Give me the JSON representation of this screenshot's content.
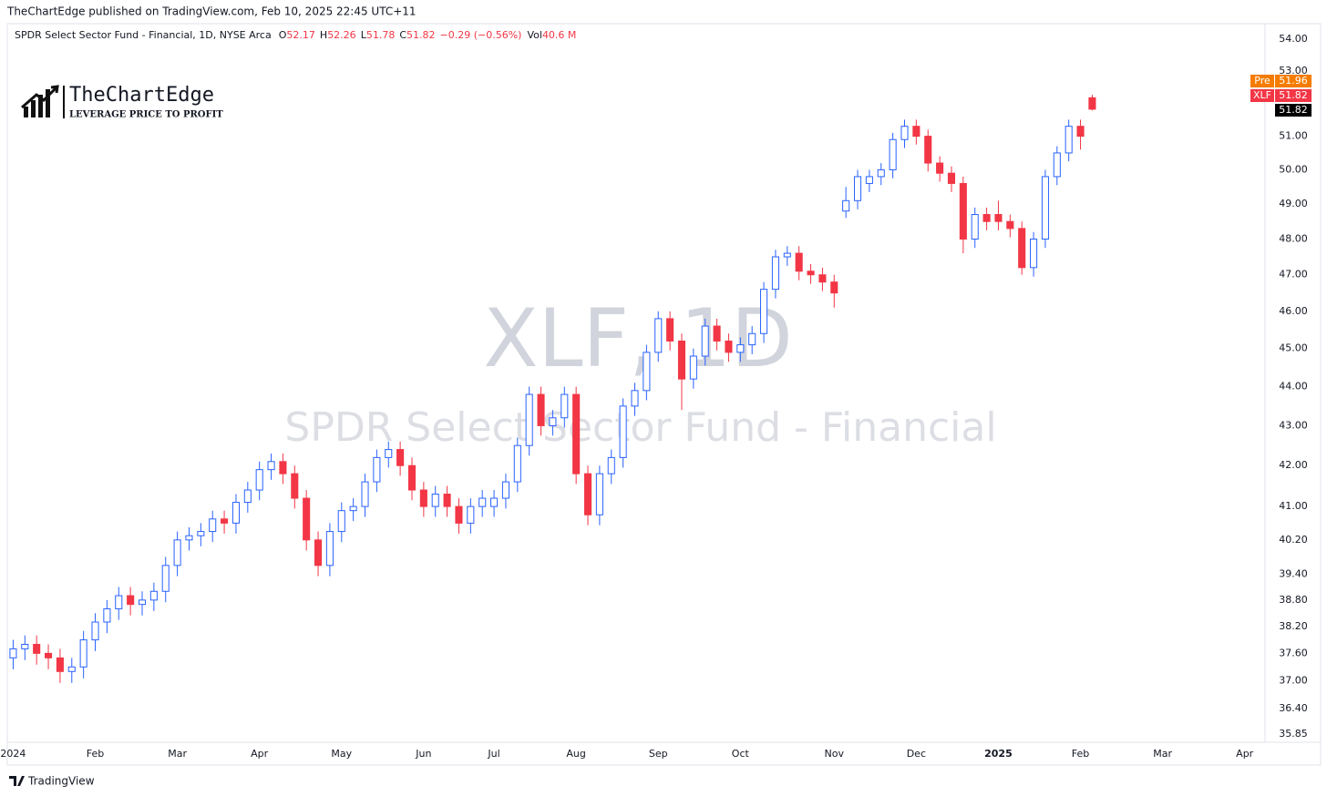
{
  "header": {
    "published": "TheChartEdge published on TradingView.com, Feb 10, 2025 22:45 UTC+11",
    "brand": "TradingView"
  },
  "logo": {
    "name": "TheChartEdge",
    "tagline": "LEVERAGE PRICE TO PROFIT"
  },
  "chart_data": {
    "type": "candlestick",
    "title": "SPDR Select Sector Fund - Financial, 1D, NYSE Arca",
    "ohlc_legend": [
      {
        "label": "O",
        "value": "52.17"
      },
      {
        "label": "H",
        "value": "52.26"
      },
      {
        "label": "L",
        "value": "51.78"
      },
      {
        "label": "C",
        "value": "51.82"
      }
    ],
    "change": "−0.29 (−0.56%)",
    "volume_label": "Vol",
    "volume": "40.6 M",
    "watermark_symbol": "XLF, 1D",
    "watermark_name": "SPDR Select Sector Fund - Financial",
    "price_labels": [
      {
        "name": "Pre",
        "value": "51.96",
        "color": "#f57c00"
      },
      {
        "name": "XLF",
        "value": "51.82",
        "color": "#f23645"
      },
      {
        "value": "51.82",
        "color": "#000000"
      }
    ],
    "up_color": "#2962ff",
    "down_color": "#f23645",
    "log_scale": true,
    "ylim": [
      35.68,
      54.44
    ],
    "yticks": [
      {
        "value": 35.85,
        "label": "35.85"
      },
      {
        "value": 36.4,
        "label": "36.40"
      },
      {
        "value": 37,
        "label": "37.00"
      },
      {
        "value": 37.6,
        "label": "37.60"
      },
      {
        "value": 38.2,
        "label": "38.20"
      },
      {
        "value": 38.8,
        "label": "38.80"
      },
      {
        "value": 39.4,
        "label": "39.40"
      },
      {
        "value": 40.2,
        "label": "40.20"
      },
      {
        "value": 41,
        "label": "41.00"
      },
      {
        "value": 42,
        "label": "42.00"
      },
      {
        "value": 43,
        "label": "43.00"
      },
      {
        "value": 44,
        "label": "44.00"
      },
      {
        "value": 45,
        "label": "45.00"
      },
      {
        "value": 46,
        "label": "46.00"
      },
      {
        "value": 47,
        "label": "47.00"
      },
      {
        "value": 48,
        "label": "48.00"
      },
      {
        "value": 49,
        "label": "49.00"
      },
      {
        "value": 50,
        "label": "50.00"
      },
      {
        "value": 51,
        "label": "51.00"
      },
      {
        "value": 53,
        "label": "53.00"
      },
      {
        "value": 54,
        "label": "54.00"
      }
    ],
    "categories": [
      "2024",
      null,
      null,
      null,
      null,
      null,
      null,
      "Feb",
      null,
      null,
      null,
      null,
      null,
      null,
      "Mar",
      null,
      null,
      null,
      null,
      null,
      null,
      "Apr",
      null,
      null,
      null,
      null,
      null,
      null,
      "May",
      null,
      null,
      null,
      null,
      null,
      null,
      "Jun",
      null,
      null,
      null,
      null,
      null,
      "Jul",
      null,
      null,
      null,
      null,
      null,
      null,
      "Aug",
      null,
      null,
      null,
      null,
      null,
      null,
      "Sep",
      null,
      null,
      null,
      null,
      null,
      null,
      "Oct",
      null,
      null,
      null,
      null,
      null,
      null,
      null,
      "Nov",
      null,
      null,
      null,
      null,
      null,
      null,
      "Dec",
      null,
      null,
      null,
      null,
      null,
      null,
      "2025",
      null,
      null,
      null,
      null,
      null,
      null,
      "Feb",
      null,
      null,
      null,
      null,
      null,
      null,
      "Mar",
      null,
      null,
      null,
      null,
      null,
      null,
      "Apr",
      null
    ],
    "open": [
      37.5,
      37.7,
      37.8,
      37.6,
      37.5,
      37.2,
      37.3,
      37.9,
      38.3,
      38.6,
      38.9,
      38.7,
      38.8,
      39.0,
      39.6,
      40.2,
      40.3,
      40.4,
      40.7,
      40.6,
      41.1,
      41.4,
      41.9,
      42.1,
      41.8,
      41.2,
      40.2,
      39.6,
      40.4,
      40.9,
      41.0,
      41.6,
      42.2,
      42.4,
      42.0,
      41.4,
      41.0,
      41.3,
      41.0,
      40.6,
      41.0,
      41.0,
      41.2,
      41.6,
      42.5,
      43.8,
      43.0,
      43.2,
      43.8,
      41.8,
      40.8,
      41.8,
      42.2,
      43.5,
      43.9,
      44.9,
      45.8,
      45.2,
      44.2,
      44.8,
      45.6,
      45.2,
      44.9,
      45.1,
      45.4,
      46.6,
      47.5,
      47.6,
      47.1,
      47.0,
      46.8,
      48.8,
      49.1,
      49.6,
      49.8,
      50.0,
      50.9,
      51.3,
      51.0,
      50.2,
      49.9,
      49.6,
      48.0,
      48.7,
      48.7,
      48.5,
      48.3,
      47.2,
      48.0,
      49.8,
      50.5,
      51.3,
      52.17,
      null,
      null,
      null,
      null,
      null,
      null,
      null,
      null,
      null,
      null,
      null,
      null,
      null,
      null
    ],
    "high": [
      37.9,
      38.0,
      38.0,
      37.8,
      37.7,
      37.5,
      38.1,
      38.5,
      38.8,
      39.1,
      39.1,
      39.0,
      39.2,
      39.8,
      40.4,
      40.5,
      40.6,
      40.9,
      40.9,
      41.3,
      41.6,
      42.1,
      42.3,
      42.3,
      42.0,
      41.4,
      40.4,
      40.6,
      41.1,
      41.2,
      41.8,
      42.4,
      42.6,
      42.6,
      42.2,
      41.6,
      41.5,
      41.5,
      41.2,
      41.2,
      41.4,
      41.4,
      41.8,
      42.7,
      44.0,
      44.0,
      43.4,
      44.0,
      44.0,
      42.0,
      42.0,
      42.4,
      43.7,
      44.1,
      45.1,
      46.0,
      46.0,
      45.4,
      45.0,
      45.8,
      45.8,
      45.4,
      45.3,
      45.6,
      46.8,
      47.7,
      47.8,
      47.8,
      47.3,
      47.2,
      47.0,
      49.5,
      50.0,
      50.0,
      50.2,
      51.1,
      51.5,
      51.5,
      51.2,
      50.4,
      50.1,
      49.8,
      48.9,
      48.9,
      49.1,
      48.7,
      48.5,
      48.2,
      50.0,
      50.7,
      51.5,
      51.5,
      52.26,
      null,
      null,
      null,
      null,
      null,
      null,
      null,
      null,
      null,
      null,
      null,
      null,
      null,
      null
    ],
    "low": [
      37.25,
      37.45,
      37.35,
      37.25,
      36.95,
      36.95,
      37.05,
      37.65,
      38.05,
      38.35,
      38.45,
      38.45,
      38.55,
      38.75,
      39.35,
      39.95,
      40.05,
      40.15,
      40.35,
      40.35,
      40.85,
      41.15,
      41.65,
      41.55,
      40.95,
      39.95,
      39.35,
      39.35,
      40.15,
      40.65,
      40.75,
      41.35,
      41.95,
      41.75,
      41.15,
      40.75,
      40.75,
      40.75,
      40.35,
      40.35,
      40.75,
      40.75,
      40.95,
      41.35,
      42.25,
      42.75,
      42.75,
      42.95,
      41.55,
      40.55,
      40.55,
      41.55,
      41.95,
      43.25,
      43.65,
      44.65,
      44.95,
      43.4,
      43.95,
      44.55,
      44.95,
      44.65,
      44.65,
      44.85,
      45.15,
      46.35,
      47.25,
      46.85,
      46.75,
      46.55,
      46.1,
      48.6,
      48.85,
      49.35,
      49.55,
      49.75,
      50.65,
      50.75,
      49.95,
      49.65,
      49.35,
      47.6,
      47.75,
      48.25,
      48.25,
      48.05,
      47.0,
      46.95,
      47.75,
      49.55,
      50.25,
      50.6,
      51.78,
      null,
      null,
      null,
      null,
      null,
      null,
      null,
      null,
      null,
      null,
      null,
      null,
      null,
      null
    ],
    "close": [
      37.7,
      37.8,
      37.6,
      37.5,
      37.2,
      37.3,
      37.9,
      38.3,
      38.6,
      38.9,
      38.7,
      38.8,
      39.0,
      39.6,
      40.2,
      40.3,
      40.4,
      40.7,
      40.6,
      41.1,
      41.4,
      41.9,
      42.1,
      41.8,
      41.2,
      40.2,
      39.6,
      40.4,
      40.9,
      41.0,
      41.6,
      42.2,
      42.4,
      42.0,
      41.4,
      41.0,
      41.3,
      41.0,
      40.6,
      41.0,
      41.2,
      41.2,
      41.6,
      42.5,
      43.8,
      43.0,
      43.2,
      43.8,
      41.8,
      40.8,
      41.8,
      42.2,
      43.5,
      43.9,
      44.9,
      45.8,
      45.2,
      44.2,
      44.8,
      45.6,
      45.2,
      44.9,
      45.1,
      45.4,
      46.6,
      47.5,
      47.6,
      47.1,
      47.0,
      46.8,
      46.5,
      49.1,
      49.8,
      49.8,
      50.0,
      50.9,
      51.3,
      51.0,
      50.2,
      49.9,
      49.6,
      48.0,
      48.7,
      48.5,
      48.5,
      48.3,
      47.2,
      48.0,
      49.8,
      50.5,
      51.3,
      51.0,
      51.82,
      null,
      null,
      null,
      null,
      null,
      null,
      null,
      null,
      null,
      null,
      null,
      null,
      null,
      null
    ]
  }
}
